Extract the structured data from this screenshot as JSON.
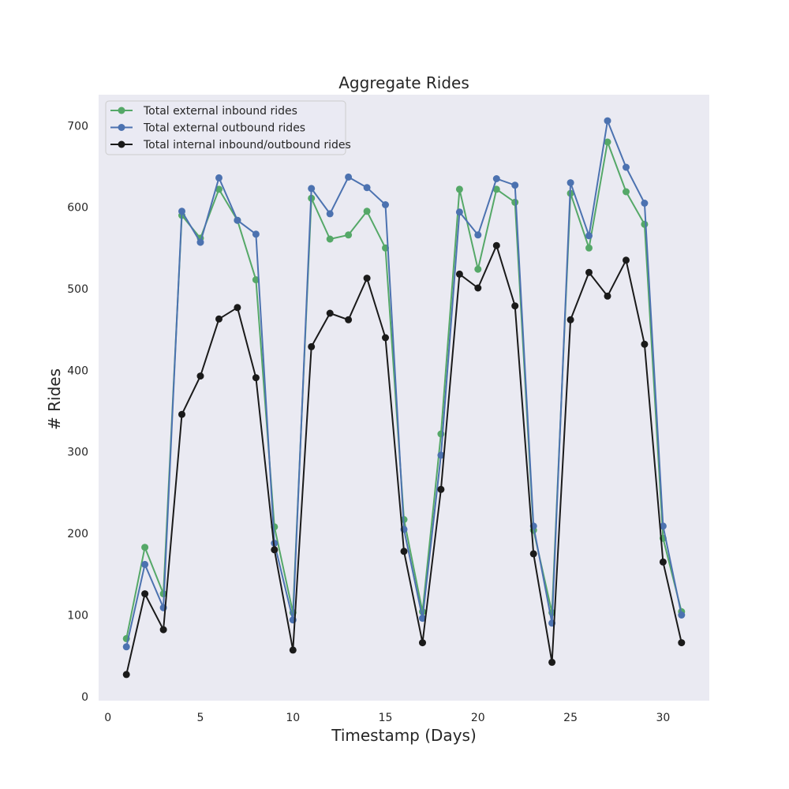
{
  "chart_data": {
    "type": "line",
    "title": "Aggregate Rides",
    "xlabel": "Timestamp (Days)",
    "ylabel": "# Rides",
    "xlim": [
      -0.5,
      32.5
    ],
    "ylim": [
      -5,
      738
    ],
    "xticks": [
      0,
      5,
      10,
      15,
      20,
      25,
      30
    ],
    "yticks": [
      0,
      100,
      200,
      300,
      400,
      500,
      600,
      700
    ],
    "grid": false,
    "legend_position": "top-left",
    "background": "#eaeaf2",
    "x": [
      1,
      2,
      3,
      4,
      5,
      6,
      7,
      8,
      9,
      10,
      11,
      12,
      13,
      14,
      15,
      16,
      17,
      18,
      19,
      20,
      21,
      22,
      23,
      24,
      25,
      26,
      27,
      28,
      29,
      30,
      31
    ],
    "series": [
      {
        "name": "Total external inbound rides",
        "color": "#55a868",
        "values": [
          71,
          183,
          126,
          590,
          562,
          622,
          584,
          511,
          208,
          103,
          611,
          561,
          566,
          595,
          550,
          217,
          104,
          322,
          622,
          524,
          622,
          606,
          204,
          103,
          617,
          550,
          680,
          619,
          579,
          194,
          104
        ]
      },
      {
        "name": "Total external outbound rides",
        "color": "#4c72b0",
        "values": [
          61,
          162,
          109,
          595,
          557,
          636,
          584,
          567,
          188,
          94,
          623,
          592,
          637,
          624,
          603,
          205,
          96,
          296,
          594,
          566,
          635,
          627,
          209,
          90,
          630,
          565,
          706,
          649,
          605,
          209,
          100
        ]
      },
      {
        "name": "Total internal inbound/outbound rides",
        "color": "#1a1a1a",
        "values": [
          27,
          126,
          82,
          346,
          393,
          463,
          477,
          391,
          180,
          57,
          429,
          470,
          462,
          513,
          440,
          178,
          66,
          254,
          518,
          501,
          553,
          479,
          175,
          42,
          462,
          520,
          491,
          535,
          432,
          165,
          66
        ]
      }
    ]
  }
}
